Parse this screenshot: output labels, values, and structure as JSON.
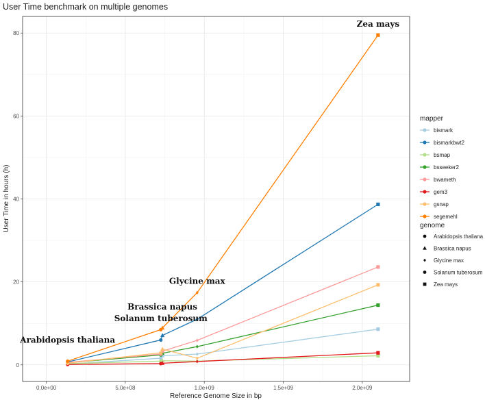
{
  "chart_data": {
    "type": "line",
    "title": "User Time benchmark on multiple genomes",
    "xlabel": "Reference Genome Size in bp",
    "ylabel": "User Time in hours (h)",
    "xlim": [
      -150000000,
      2300000000
    ],
    "ylim": [
      -4,
      84
    ],
    "x_ticks": [
      {
        "value": 0,
        "label": "0.0e+00"
      },
      {
        "value": 500000000,
        "label": "5.0e+08"
      },
      {
        "value": 1000000000,
        "label": "1.0e+09"
      },
      {
        "value": 1500000000,
        "label": "1.5e+09"
      },
      {
        "value": 2000000000,
        "label": "2.0e+09"
      }
    ],
    "y_ticks": [
      0,
      20,
      40,
      60,
      80
    ],
    "grid": true,
    "genomes": [
      {
        "name": "Arabidopsis thaliana",
        "x": 135000000,
        "shape": "circle"
      },
      {
        "name": "Brassica napus",
        "x": 735000000,
        "shape": "triangle"
      },
      {
        "name": "Glycine max",
        "x": 955000000,
        "shape": "diamond"
      },
      {
        "name": "Solanum tuberosum",
        "x": 725000000,
        "shape": "circle"
      },
      {
        "name": "Zea mays",
        "x": 2100000000,
        "shape": "square"
      }
    ],
    "series": [
      {
        "name": "bismark",
        "color": "#a6cee3",
        "values": {
          "Arabidopsis thaliana": 0.2,
          "Solanum tuberosum": 1.6,
          "Brassica napus": 2.2,
          "Glycine max": 2.6,
          "Zea mays": 8.6
        }
      },
      {
        "name": "bismarkbwt2",
        "color": "#1f78b4",
        "values": {
          "Arabidopsis thaliana": 0.7,
          "Solanum tuberosum": 6.0,
          "Brassica napus": 7.1,
          "Glycine max": 11.0,
          "Zea mays": 38.7
        }
      },
      {
        "name": "bsmap",
        "color": "#b2df8a",
        "values": {
          "Arabidopsis thaliana": 0.3,
          "Solanum tuberosum": 0.9,
          "Brassica napus": 1.0,
          "Glycine max": 0.9,
          "Zea mays": 2.2
        }
      },
      {
        "name": "bsseeker2",
        "color": "#33a02c",
        "values": {
          "Arabidopsis thaliana": 0.5,
          "Solanum tuberosum": 2.4,
          "Brassica napus": 2.8,
          "Glycine max": 4.4,
          "Zea mays": 14.4
        }
      },
      {
        "name": "bwameth",
        "color": "#fb9a99",
        "values": {
          "Arabidopsis thaliana": 0.6,
          "Solanum tuberosum": 2.6,
          "Brassica napus": 3.3,
          "Glycine max": 5.9,
          "Zea mays": 23.6
        }
      },
      {
        "name": "gem3",
        "color": "#e31a1c",
        "values": {
          "Arabidopsis thaliana": 0.1,
          "Solanum tuberosum": 0.3,
          "Brassica napus": 0.4,
          "Glycine max": 0.8,
          "Zea mays": 2.9
        }
      },
      {
        "name": "gsnap",
        "color": "#fdbf6f",
        "values": {
          "Arabidopsis thaliana": 0.4,
          "Solanum tuberosum": 2.9,
          "Brassica napus": 3.8,
          "Glycine max": 1.6,
          "Zea mays": 19.3
        }
      },
      {
        "name": "segemehl",
        "color": "#ff7f00",
        "values": {
          "Arabidopsis thaliana": 0.9,
          "Solanum tuberosum": 8.5,
          "Brassica napus": 8.9,
          "Glycine max": 17.4,
          "Zea mays": 79.5
        }
      }
    ],
    "series_order": [
      "Arabidopsis thaliana",
      "Solanum tuberosum",
      "Brassica napus",
      "Glycine max",
      "Zea mays"
    ],
    "annotations": [
      {
        "text": "Zea mays",
        "x": 2100000000,
        "y": 81.5
      },
      {
        "text": "Glycine max",
        "x": 955000000,
        "y": 19.5
      },
      {
        "text": "Brassica napus",
        "x": 735000000,
        "y": 13.3
      },
      {
        "text": "Solanum tuberosum",
        "x": 725000000,
        "y": 10.5
      },
      {
        "text": "Arabidopsis thaliana",
        "x": 135000000,
        "y": 5.3
      }
    ],
    "legend_mapper_title": "mapper",
    "legend_genome_title": "genome",
    "legend_position": "right"
  }
}
